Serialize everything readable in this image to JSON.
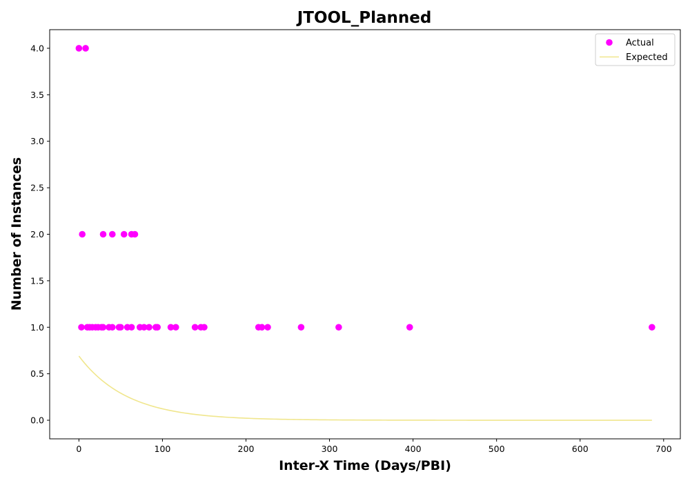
{
  "chart_data": {
    "type": "scatter",
    "title": "JTOOL_Planned",
    "xlabel": "Inter-X Time (Days/PBI)",
    "ylabel": "Number of Instances",
    "xlim": [
      -35,
      720
    ],
    "ylim": [
      -0.2,
      4.2
    ],
    "xticks": [
      0,
      100,
      200,
      300,
      400,
      500,
      600,
      700
    ],
    "yticks": [
      0.0,
      0.5,
      1.0,
      1.5,
      2.0,
      2.5,
      3.0,
      3.5,
      4.0
    ],
    "grid": false,
    "legend_position": "top-right",
    "series": [
      {
        "name": "Actual",
        "kind": "scatter",
        "color": "#ff00ff",
        "points": [
          [
            0,
            4
          ],
          [
            8,
            4
          ],
          [
            4,
            2
          ],
          [
            29,
            2
          ],
          [
            40,
            2
          ],
          [
            54,
            2
          ],
          [
            63,
            2
          ],
          [
            67,
            2
          ],
          [
            3,
            1
          ],
          [
            10,
            1
          ],
          [
            13,
            1
          ],
          [
            16,
            1
          ],
          [
            20,
            1
          ],
          [
            23,
            1
          ],
          [
            27,
            1
          ],
          [
            29,
            1
          ],
          [
            36,
            1
          ],
          [
            40,
            1
          ],
          [
            48,
            1
          ],
          [
            50,
            1
          ],
          [
            58,
            1
          ],
          [
            63,
            1
          ],
          [
            73,
            1
          ],
          [
            78,
            1
          ],
          [
            84,
            1
          ],
          [
            92,
            1
          ],
          [
            94,
            1
          ],
          [
            110,
            1
          ],
          [
            116,
            1
          ],
          [
            139,
            1
          ],
          [
            146,
            1
          ],
          [
            150,
            1
          ],
          [
            215,
            1
          ],
          [
            219,
            1
          ],
          [
            226,
            1
          ],
          [
            266,
            1
          ],
          [
            311,
            1
          ],
          [
            396,
            1
          ],
          [
            686,
            1
          ]
        ]
      },
      {
        "name": "Expected",
        "kind": "line",
        "color": "#f0e68c",
        "curve": {
          "function": "y = a * exp(-x / b)",
          "a": 0.69,
          "b": 58,
          "x_start": 0,
          "x_end": 686
        }
      }
    ]
  }
}
